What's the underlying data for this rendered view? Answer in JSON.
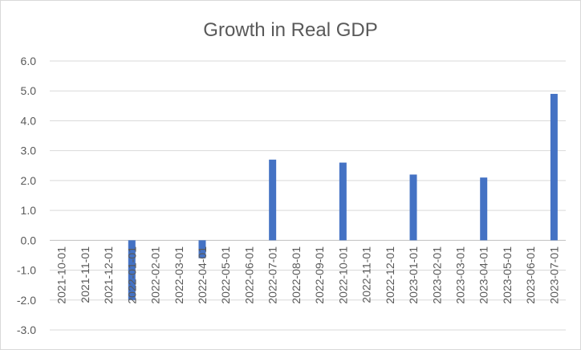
{
  "chart_data": {
    "type": "bar",
    "title": "Growth in Real GDP",
    "xlabel": "",
    "ylabel": "",
    "ylim": [
      -3.0,
      6.0
    ],
    "yticks": [
      "6.0",
      "5.0",
      "4.0",
      "3.0",
      "2.0",
      "1.0",
      "0.0",
      "-1.0",
      "-2.0",
      "-3.0"
    ],
    "grid": true,
    "legend": "none",
    "bar_color": "#4472c4",
    "categories": [
      "2021-10-01",
      "2021-11-01",
      "2021-12-01",
      "2022-01-01",
      "2022-02-01",
      "2022-03-01",
      "2022-04-01",
      "2022-05-01",
      "2022-06-01",
      "2022-07-01",
      "2022-08-01",
      "2022-09-01",
      "2022-10-01",
      "2022-11-01",
      "2022-12-01",
      "2023-01-01",
      "2023-02-01",
      "2023-03-01",
      "2023-04-01",
      "2023-05-01",
      "2023-06-01",
      "2023-07-01"
    ],
    "values": [
      null,
      null,
      null,
      -2.0,
      null,
      null,
      -0.6,
      null,
      null,
      2.7,
      null,
      null,
      2.6,
      null,
      null,
      2.2,
      null,
      null,
      2.1,
      null,
      null,
      4.9
    ]
  }
}
